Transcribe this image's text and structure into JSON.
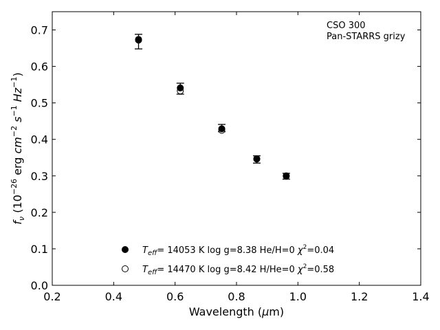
{
  "chart_data": {
    "type": "scatter",
    "xlabel": {
      "pre": "Wavelength (",
      "mu": "μ",
      "post": "m)"
    },
    "ylabel": {
      "f": "f",
      "nu": "ν",
      "open": " (10",
      "exp1": "−26",
      "erg": " erg ",
      "cm": "cm",
      "exp2": "−2",
      "s": " s",
      "exp3": "−1",
      "hz": " Hz",
      "exp4": "−1",
      "close": ")"
    },
    "xlim": [
      0.2,
      1.4
    ],
    "ylim": [
      0.0,
      0.75
    ],
    "xticks": [
      "0.2",
      "0.4",
      "0.6",
      "0.8",
      "1.0",
      "1.2",
      "1.4"
    ],
    "yticks": [
      "0.0",
      "0.1",
      "0.2",
      "0.3",
      "0.4",
      "0.5",
      "0.6",
      "0.7"
    ],
    "grid": false,
    "annotation": [
      "CSO 300",
      "Pan-STARRS grizy"
    ],
    "observed": {
      "x": [
        0.481,
        0.617,
        0.752,
        0.866,
        0.962
      ],
      "y": [
        0.668,
        0.539,
        0.431,
        0.345,
        0.299
      ],
      "yerr": [
        0.02,
        0.015,
        0.01,
        0.01,
        0.008
      ]
    },
    "series": [
      {
        "marker": "filled-circle",
        "x": [
          0.481,
          0.617,
          0.752,
          0.866,
          0.962
        ],
        "y": [
          0.672,
          0.541,
          0.429,
          0.347,
          0.299
        ],
        "legend": {
          "t": "T",
          "sub": "eff",
          "values": "= 14053 K  log g=8.38  He/H=0  ",
          "chi": "χ",
          "sup": "2",
          "fit": "=0.04"
        }
      },
      {
        "marker": "open-circle",
        "x": [
          0.481,
          0.617,
          0.752,
          0.866,
          0.962
        ],
        "y": [
          0.674,
          0.533,
          0.425,
          0.346,
          0.3
        ],
        "legend": {
          "t": "T",
          "sub": "eff",
          "values": "= 14470 K  log g=8.42  H/He=0  ",
          "chi": "χ",
          "sup": "2",
          "fit": "=0.58"
        }
      }
    ],
    "legend_position": "lower-center"
  }
}
